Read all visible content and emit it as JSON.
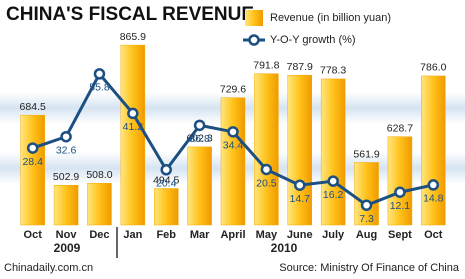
{
  "chart_data": {
    "type": "bar-line",
    "title": "CHINA'S FISCAL REVENUE",
    "categories": [
      "Oct",
      "Nov",
      "Dec",
      "Jan",
      "Feb",
      "Mar",
      "April",
      "May",
      "June",
      "July",
      "Aug",
      "Sept",
      "Oct"
    ],
    "year_labels": [
      "2009",
      "2010"
    ],
    "series": [
      {
        "name": "Revenue (in billion yuan)",
        "type": "bar",
        "color": "#f5a800",
        "values": [
          684.5,
          502.9,
          508,
          865.9,
          494.5,
          602.3,
          729.6,
          791.8,
          787.9,
          778.3,
          561.9,
          628.7,
          786
        ],
        "value_labels": [
          "684.5",
          "502.9",
          "508.0",
          "865.9",
          "494.5",
          "602.3",
          "729.6",
          "791.8",
          "787.9",
          "778.3",
          "561.9",
          "628.7",
          "786.0"
        ]
      },
      {
        "name": "Y-O-Y growth (%)",
        "type": "line",
        "axis": "y2",
        "color": "#1c4f82",
        "values": [
          28.4,
          32.6,
          55.8,
          41.2,
          20.4,
          36.8,
          34.4,
          20.5,
          14.7,
          16.2,
          7.3,
          12.1,
          14.8
        ],
        "value_labels": [
          "28.4",
          "32.6",
          "55.8",
          "41.2",
          "20.4",
          "36.8",
          "34.4",
          "20.5",
          "14.7",
          "16.2",
          "7.3",
          "12.1",
          "14.8"
        ]
      }
    ],
    "ylim": [
      400,
      905
    ],
    "y2lim": [
      0,
      72
    ],
    "footer_left": "Chinadaily.com.cn",
    "source": "Source: Ministry Of Finance of China"
  }
}
